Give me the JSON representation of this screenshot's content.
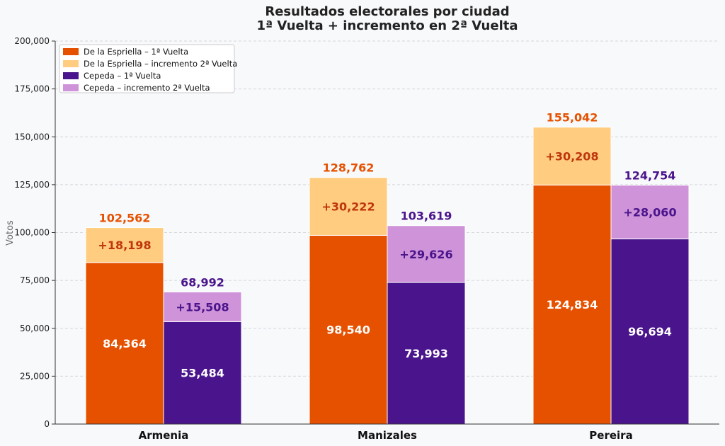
{
  "chart_data": {
    "type": "bar",
    "title": "Resultados electorales por ciudad",
    "subtitle": "1ª Vuelta + incremento en 2ª Vuelta",
    "xlabel": "",
    "ylabel": "Votos",
    "ylim": [
      0,
      200000
    ],
    "yticks": [
      0,
      25000,
      50000,
      75000,
      100000,
      125000,
      150000,
      175000,
      200000
    ],
    "ytick_labels": [
      "0",
      "25,000",
      "50,000",
      "75,000",
      "100,000",
      "125,000",
      "150,000",
      "175,000",
      "200,000"
    ],
    "grid": true,
    "legend_position": "top-left",
    "categories": [
      "Armenia",
      "Manizales",
      "Pereira"
    ],
    "series": [
      {
        "name": "De la Espriella – 1ª Vuelta",
        "values": [
          84364,
          98540,
          124834
        ],
        "labels": [
          "84,364",
          "98,540",
          "124,834"
        ],
        "color": "#e65100"
      },
      {
        "name": "De la Espriella – incremento 2ª Vuelta",
        "values": [
          18198,
          30222,
          30208
        ],
        "labels": [
          "+18,198",
          "+30,222",
          "+30,208"
        ],
        "color": "#ffcc80"
      },
      {
        "name": "Cepeda – 1ª Vuelta",
        "values": [
          53484,
          73993,
          96694
        ],
        "labels": [
          "53,484",
          "73,993",
          "96,694"
        ],
        "color": "#4a148c"
      },
      {
        "name": "Cepeda – incremento 2ª Vuelta",
        "values": [
          15508,
          29626,
          28060
        ],
        "labels": [
          "+15,508",
          "+29,626",
          "+28,060"
        ],
        "color": "#ce93d8"
      }
    ],
    "totals": {
      "De la Espriella": {
        "values": [
          102562,
          128762,
          155042
        ],
        "labels": [
          "102,562",
          "128,762",
          "155,042"
        ],
        "color": "#e65100"
      },
      "Cepeda": {
        "values": [
          68992,
          103619,
          124754
        ],
        "labels": [
          "68,992",
          "103,619",
          "124,754"
        ],
        "color": "#4a148c"
      }
    },
    "inc_label_colors": {
      "De la Espriella": "#bf360c",
      "Cepeda": "#4a148c"
    }
  }
}
